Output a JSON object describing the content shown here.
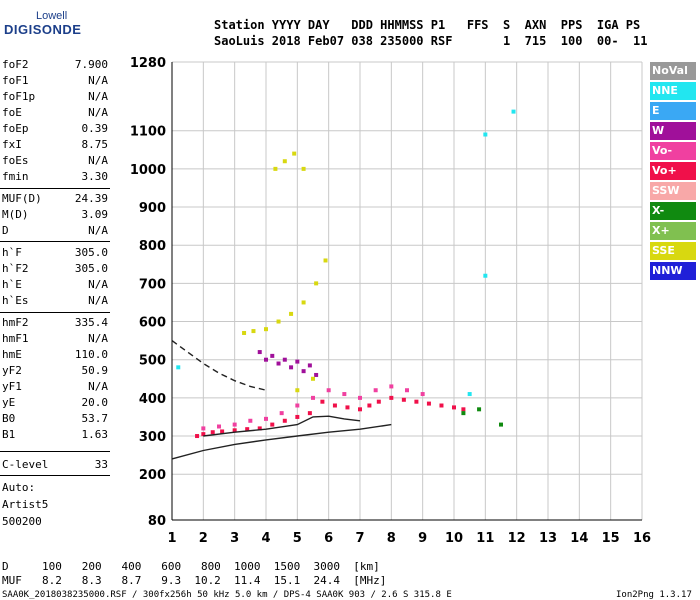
{
  "logo": {
    "line1": "Lowell",
    "line2": "DIGISONDE"
  },
  "header": {
    "line1": "Station YYYY DAY   DDD HHMMSS P1   FFS  S  AXN  PPS  IGA PS",
    "line2": "SaoLuis 2018 Feb07 038 235000 RSF       1  715  100  00-  11"
  },
  "params": [
    {
      "name": "foF2",
      "value": "7.900"
    },
    {
      "name": "foF1",
      "value": "N/A"
    },
    {
      "name": "foF1p",
      "value": "N/A"
    },
    {
      "name": "foE",
      "value": "N/A"
    },
    {
      "name": "foEp",
      "value": "0.39"
    },
    {
      "name": "fxI",
      "value": "8.75"
    },
    {
      "name": "foEs",
      "value": "N/A"
    },
    {
      "name": "fmin",
      "value": "3.30"
    },
    {
      "name": "MUF(D)",
      "value": "24.39"
    },
    {
      "name": "M(D)",
      "value": "3.09"
    },
    {
      "name": "D",
      "value": "N/A"
    },
    {
      "name": "h`F",
      "value": "305.0"
    },
    {
      "name": "h`F2",
      "value": "305.0"
    },
    {
      "name": "h`E",
      "value": "N/A"
    },
    {
      "name": "h`Es",
      "value": "N/A"
    },
    {
      "name": "hmF2",
      "value": "335.4"
    },
    {
      "name": "hmF1",
      "value": "N/A"
    },
    {
      "name": "hmE",
      "value": "110.0"
    },
    {
      "name": "yF2",
      "value": "50.9"
    },
    {
      "name": "yF1",
      "value": "N/A"
    },
    {
      "name": "yE",
      "value": "20.0"
    },
    {
      "name": "B0",
      "value": "53.7"
    },
    {
      "name": "B1",
      "value": "1.63"
    },
    {
      "name": "C-level",
      "value": "33"
    }
  ],
  "auto": {
    "label": "Auto:",
    "artist": "Artist5",
    "version": "500200"
  },
  "legend": [
    {
      "label": "NoVal",
      "color": "#999999"
    },
    {
      "label": "NNE",
      "color": "#22e6f0"
    },
    {
      "label": "E",
      "color": "#3aa8f4"
    },
    {
      "label": "W",
      "color": "#a0109a"
    },
    {
      "label": "Vo-",
      "color": "#f040a0"
    },
    {
      "label": "Vo+",
      "color": "#f0104a"
    },
    {
      "label": "SSW",
      "color": "#f8a8a8"
    },
    {
      "label": "X-",
      "color": "#108a10"
    },
    {
      "label": "X+",
      "color": "#80c050"
    },
    {
      "label": "SSE",
      "color": "#d8d810"
    },
    {
      "label": "NNW",
      "color": "#2020d8"
    }
  ],
  "footer": {
    "d_label": "D",
    "d_values": "100   200   400   600   800  1000  1500  3000  [km]",
    "muf_label": "MUF",
    "muf_values": "8.2   8.3   8.7   9.3  10.2  11.4  15.1  24.4  [MHz]",
    "file_info": "SAA0K_2018038235000.RSF / 300fx256h 50 kHz 5.0 km / DPS-4 SAA0K 903 / 2.6 S 315.8 E",
    "version": "Ion2Png 1.3.17"
  },
  "chart_data": {
    "type": "scatter",
    "title": "",
    "xlabel": "",
    "ylabel": "",
    "xlim": [
      1,
      16
    ],
    "ylim": [
      80,
      1280
    ],
    "x_ticks": [
      1,
      2,
      3,
      4,
      5,
      6,
      7,
      8,
      9,
      10,
      11,
      12,
      13,
      14,
      15,
      16
    ],
    "y_ticks": [
      80,
      200,
      300,
      400,
      500,
      600,
      700,
      800,
      900,
      1000,
      1100,
      1280
    ],
    "grid": true,
    "series": [
      {
        "color": "#f0104a",
        "x": [
          1.8,
          2.0,
          2.3,
          2.6,
          3.0,
          3.4,
          3.8,
          4.2,
          4.6,
          5.0,
          5.4,
          5.8,
          6.2,
          6.6,
          7.0,
          7.3,
          7.6,
          8.0,
          8.4,
          8.8,
          9.2,
          9.6,
          10.0,
          10.3
        ],
        "y": [
          300,
          305,
          310,
          312,
          315,
          318,
          320,
          330,
          340,
          350,
          360,
          390,
          380,
          375,
          370,
          380,
          390,
          400,
          395,
          390,
          385,
          380,
          375,
          370
        ]
      },
      {
        "color": "#f040a0",
        "x": [
          2.0,
          2.5,
          3.0,
          3.5,
          4.0,
          4.5,
          5.0,
          5.5,
          6.0,
          6.5,
          7.0,
          7.5,
          8.0,
          8.5,
          9.0
        ],
        "y": [
          320,
          325,
          330,
          340,
          345,
          360,
          380,
          400,
          420,
          410,
          400,
          420,
          430,
          420,
          410
        ]
      },
      {
        "color": "#a0109a",
        "x": [
          4.0,
          4.4,
          4.8,
          5.2,
          5.6,
          3.8,
          4.2,
          4.6,
          5.0,
          5.4
        ],
        "y": [
          500,
          490,
          480,
          470,
          460,
          520,
          510,
          500,
          495,
          485
        ]
      },
      {
        "color": "#d8d810",
        "x": [
          3.3,
          3.6,
          4.0,
          4.4,
          4.8,
          5.2,
          5.6,
          5.9,
          4.3,
          4.6,
          4.9,
          5.2,
          5.0,
          5.5
        ],
        "y": [
          570,
          575,
          580,
          600,
          620,
          650,
          700,
          760,
          1000,
          1020,
          1040,
          1000,
          420,
          450
        ]
      },
      {
        "color": "#22e6f0",
        "x": [
          1.2,
          10.5,
          11.0,
          11.0,
          11.9
        ],
        "y": [
          480,
          410,
          720,
          1090,
          1150
        ]
      },
      {
        "color": "#108a10",
        "x": [
          10.3,
          10.8,
          11.5
        ],
        "y": [
          360,
          370,
          330
        ]
      }
    ],
    "traces": [
      {
        "name": "",
        "x": [
          1.0,
          2.0,
          3.0,
          4.0,
          5.0,
          6.0,
          7.0,
          8.0
        ],
        "y": [
          240,
          262,
          278,
          290,
          300,
          310,
          318,
          330
        ]
      },
      {
        "name": "",
        "x": [
          1.0,
          1.5,
          2.0,
          2.5,
          3.0,
          3.5,
          4.0
        ],
        "y": [
          550,
          520,
          490,
          465,
          445,
          430,
          420
        ]
      },
      {
        "name": "",
        "x": [
          2.0,
          3.0,
          4.0,
          5.0,
          5.5,
          6.0,
          6.5,
          7.0
        ],
        "y": [
          300,
          310,
          318,
          330,
          350,
          352,
          345,
          340
        ]
      }
    ]
  }
}
